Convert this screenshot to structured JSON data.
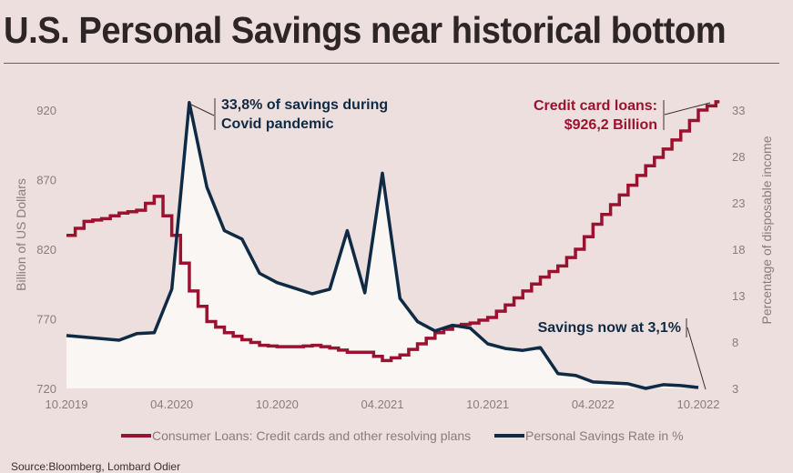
{
  "title": "U.S. Personal Savings near historical bottom",
  "source": "Source:Bloomberg, Lombard Odier",
  "chart_data": {
    "type": "line",
    "title": "U.S. Personal Savings near historical bottom",
    "x_tick_labels": [
      "10.2019",
      "04.2020",
      "10.2020",
      "04.2021",
      "10.2021",
      "04.2022",
      "10.2022"
    ],
    "x_unit": "months since 10.2019",
    "xlim": [
      0,
      36
    ],
    "ylabel_left": "Billion of US Dollars",
    "ylabel_right": "Percentage of disposable income",
    "ylim_left": [
      720,
      920
    ],
    "ylim_right": [
      3,
      33
    ],
    "y_ticks_left": [
      "920",
      "870",
      "820",
      "770",
      "720"
    ],
    "y_ticks_right": [
      "33",
      "28",
      "23",
      "18",
      "13",
      "8",
      "3"
    ],
    "series": [
      {
        "name": "Consumer Loans: Credit cards and other resolving plans",
        "axis": "left",
        "color": "#9b1230",
        "style": "step",
        "x": [
          0,
          1,
          2,
          3,
          4,
          5,
          6,
          7,
          8,
          9,
          10,
          11,
          12,
          13,
          14,
          15,
          16,
          17,
          18,
          19,
          20,
          21,
          22,
          23,
          24,
          25,
          26,
          27,
          28,
          29,
          30,
          31,
          32,
          33,
          34,
          35,
          36,
          37
        ],
        "values": [
          830,
          840,
          842,
          846,
          848,
          858,
          830,
          790,
          768,
          760,
          755,
          751,
          750,
          750,
          751,
          749,
          746,
          746,
          740,
          744,
          752,
          760,
          765,
          767,
          771,
          780,
          790,
          800,
          808,
          820,
          838,
          852,
          866,
          880,
          892,
          905,
          920,
          926
        ]
      },
      {
        "name": "Personal Savings Rate in %",
        "axis": "right",
        "color": "#0f2a44",
        "style": "line-filled",
        "x": [
          0,
          3,
          4,
          5,
          6,
          7,
          8,
          9,
          10,
          11,
          12,
          13,
          14,
          15,
          16,
          17,
          18,
          19,
          20,
          21,
          22,
          23,
          24,
          25,
          26,
          27,
          28,
          29,
          30,
          31,
          32,
          33,
          34,
          35,
          36
        ],
        "values": [
          8.7,
          8.2,
          8.9,
          9.0,
          13.7,
          33.8,
          24.7,
          20.0,
          19.1,
          15.4,
          14.4,
          13.8,
          13.2,
          13.7,
          20.0,
          13.3,
          26.2,
          12.7,
          10.2,
          9.2,
          9.8,
          9.5,
          7.8,
          7.3,
          7.1,
          7.4,
          4.6,
          4.4,
          3.7,
          3.6,
          3.5,
          3.0,
          3.4,
          3.3,
          3.1
        ]
      }
    ],
    "annotations": [
      {
        "text_lines": [
          "33,8% of savings during",
          "Covid pandemic"
        ],
        "color": "#0f2a44"
      },
      {
        "text_lines": [
          "Credit card loans:",
          "$926,2 Billion"
        ],
        "color": "#9b1230"
      },
      {
        "text_lines": [
          "Savings now at 3,1%"
        ],
        "color": "#0f2a44"
      }
    ],
    "legend": {
      "placement": "bottom",
      "entries": [
        "Consumer Loans: Credit cards and other resolving plans",
        "Personal Savings Rate in %"
      ]
    },
    "grid": false
  }
}
